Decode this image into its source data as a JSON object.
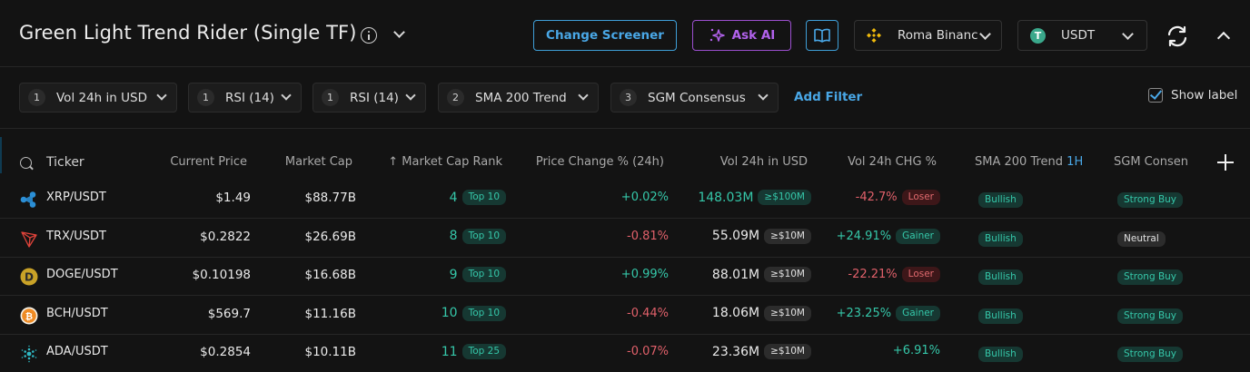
{
  "header": {
    "title": "Green Light Trend Rider (Single TF)",
    "change_screener_label": "Change Screener",
    "ask_ai_label": "Ask AI",
    "exchange_select": "Roma Binanc",
    "quote_select": "USDT",
    "quote_icon_glyph": "T"
  },
  "filters": {
    "chips": [
      {
        "count": "1",
        "label": "Vol 24h in USD"
      },
      {
        "count": "1",
        "label": "RSI (14)"
      },
      {
        "count": "1",
        "label": "RSI (14)"
      },
      {
        "count": "2",
        "label": "SMA 200 Trend"
      },
      {
        "count": "3",
        "label": "SGM Consensus"
      }
    ],
    "add_filter_label": "Add Filter",
    "show_label": "Show label",
    "show_label_checked": true
  },
  "table": {
    "columns": {
      "ticker": "Ticker",
      "current_price": "Current Price",
      "market_cap": "Market Cap",
      "market_cap_rank": "↑ Market Cap Rank",
      "price_change": "Price Change % (24h)",
      "vol_24h": "Vol 24h in USD",
      "vol_24h_chg": "Vol 24h CHG %",
      "sma_trend": "SMA 200 Trend",
      "sma_trend_tf": "1H",
      "sgm_consensus": "SGM Consen"
    },
    "rows": [
      {
        "icon": "xrp-icon",
        "ticker": "XRP/USDT",
        "price": "$1.49",
        "market_cap": "$88.77B",
        "rank": "4",
        "rank_badge": "Top 10",
        "price_change": "+0.02%",
        "price_change_dir": "pos",
        "volume": "148.03M",
        "volume_badge": "≥$100M",
        "vol_chg": "-42.7%",
        "vol_chg_dir": "neg",
        "vol_chg_badge": "Loser",
        "sma_trend": "Bullish",
        "sgm": "Strong Buy"
      },
      {
        "icon": "trx-icon",
        "ticker": "TRX/USDT",
        "price": "$0.2822",
        "market_cap": "$26.69B",
        "rank": "8",
        "rank_badge": "Top 10",
        "price_change": "-0.81%",
        "price_change_dir": "neg",
        "volume": "55.09M",
        "volume_badge": "≥$10M",
        "vol_chg": "+24.91%",
        "vol_chg_dir": "pos",
        "vol_chg_badge": "Gainer",
        "sma_trend": "Bullish",
        "sgm": "Neutral"
      },
      {
        "icon": "doge-icon",
        "ticker": "DOGE/USDT",
        "price": "$0.10198",
        "market_cap": "$16.68B",
        "rank": "9",
        "rank_badge": "Top 10",
        "price_change": "+0.99%",
        "price_change_dir": "pos",
        "volume": "88.01M",
        "volume_badge": "≥$10M",
        "vol_chg": "-22.21%",
        "vol_chg_dir": "neg",
        "vol_chg_badge": "Loser",
        "sma_trend": "Bullish",
        "sgm": "Strong Buy"
      },
      {
        "icon": "bch-icon",
        "ticker": "BCH/USDT",
        "price": "$569.7",
        "market_cap": "$11.16B",
        "rank": "10",
        "rank_badge": "Top 10",
        "price_change": "-0.44%",
        "price_change_dir": "neg",
        "volume": "18.06M",
        "volume_badge": "≥$10M",
        "vol_chg": "+23.25%",
        "vol_chg_dir": "pos",
        "vol_chg_badge": "Gainer",
        "sma_trend": "Bullish",
        "sgm": "Strong Buy"
      },
      {
        "icon": "ada-icon",
        "ticker": "ADA/USDT",
        "price": "$0.2854",
        "market_cap": "$10.11B",
        "rank": "11",
        "rank_badge": "Top 25",
        "price_change": "-0.07%",
        "price_change_dir": "neg",
        "volume": "23.36M",
        "volume_badge": "≥$10M",
        "vol_chg": "+6.91%",
        "vol_chg_dir": "pos",
        "vol_chg_badge": "",
        "sma_trend": "Bullish",
        "sgm": "Strong Buy"
      }
    ]
  },
  "colors": {
    "accent_blue": "#49a7e6",
    "ai_purple": "#b262ec",
    "positive": "#35c7a9",
    "negative": "#e0606a",
    "background": "#131313"
  }
}
